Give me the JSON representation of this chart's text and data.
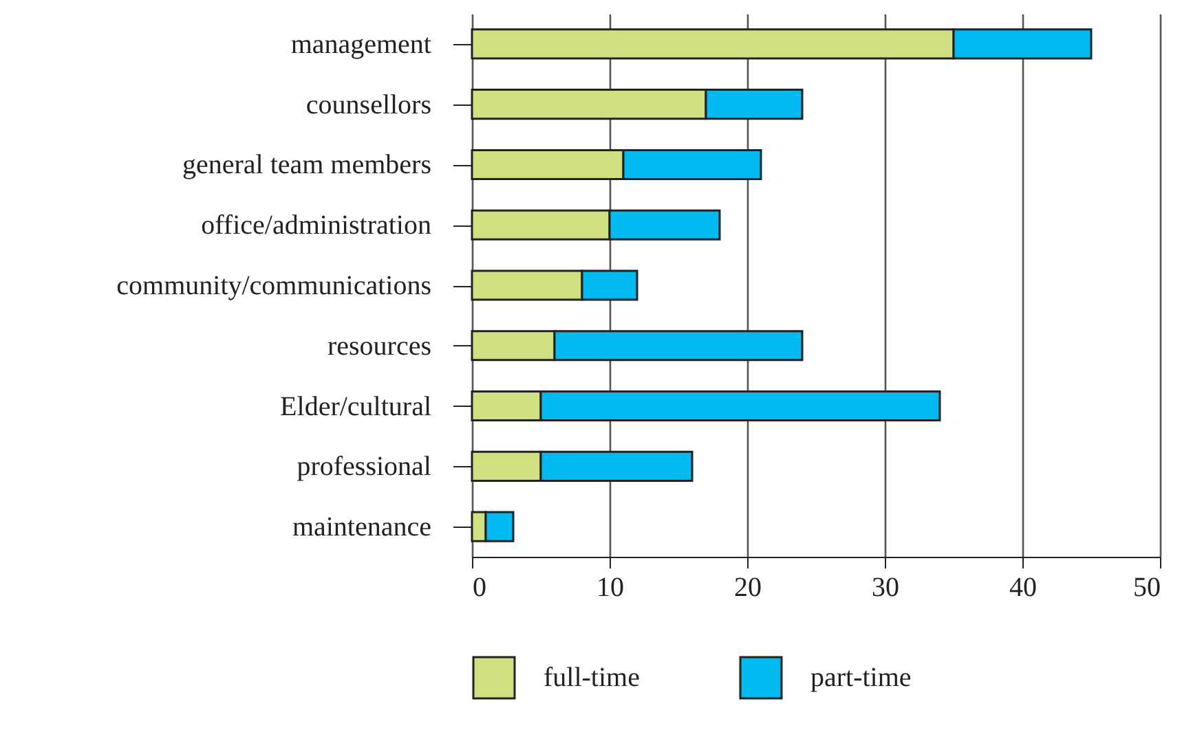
{
  "chart_data": {
    "type": "bar",
    "orientation": "horizontal",
    "stacked": true,
    "categories": [
      "management",
      "counsellors",
      "general team members",
      "office/administration",
      "community/communications",
      "resources",
      "Elder/cultural",
      "professional",
      "maintenance"
    ],
    "series": [
      {
        "name": "full-time",
        "color": "#cfe081",
        "values": [
          35,
          17,
          11,
          10,
          8,
          6,
          5,
          5,
          1
        ]
      },
      {
        "name": "part-time",
        "color": "#00b9ef",
        "values": [
          10,
          7,
          10,
          8,
          4,
          18,
          29,
          11,
          2
        ]
      }
    ],
    "xlim": [
      0,
      50
    ],
    "xticks": [
      0,
      10,
      20,
      30,
      40,
      50
    ],
    "grid": "x",
    "legend": "bottom"
  }
}
